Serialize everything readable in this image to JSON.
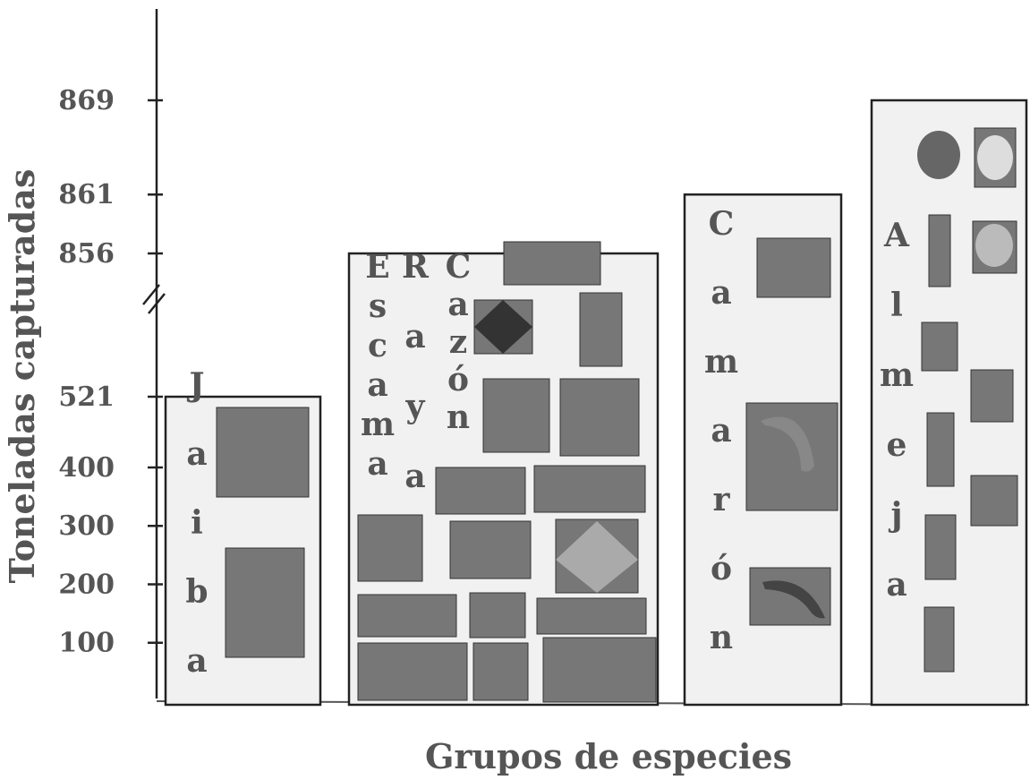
{
  "chart_data": {
    "type": "bar",
    "xlabel": "Grupos de especies",
    "ylabel": "Toneladas capturadas",
    "y_ticks": [
      "100",
      "200",
      "300",
      "400",
      "521",
      "856",
      "861",
      "869"
    ],
    "axis_break": true,
    "categories": [
      "Jaiba",
      "Escama",
      "Raya",
      "Cazón",
      "Camarón",
      "Almeja"
    ],
    "values": [
      521,
      856,
      856,
      856,
      861,
      869
    ],
    "colors": {
      "bar_fill": "#f1f1f1",
      "bar_stroke": "#222222",
      "text": "#555555"
    }
  }
}
